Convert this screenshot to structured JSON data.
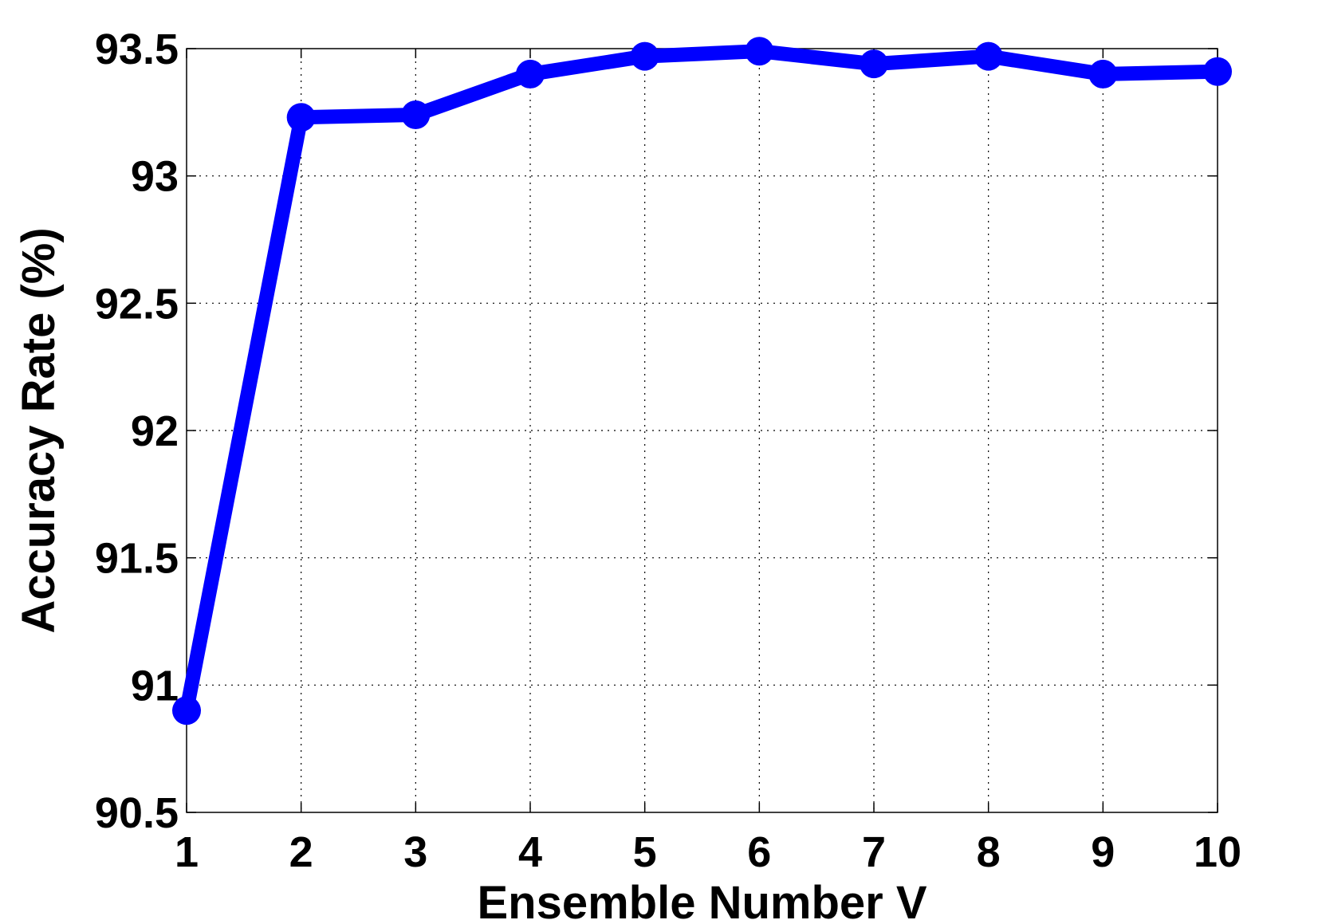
{
  "chart_data": {
    "type": "line",
    "title": "",
    "xlabel": "Ensemble Number V",
    "ylabel": "Accuracy Rate (%)",
    "xlim": [
      1,
      10
    ],
    "ylim": [
      90.5,
      93.5
    ],
    "xticks": [
      1,
      2,
      3,
      4,
      5,
      6,
      7,
      8,
      9,
      10
    ],
    "yticks": [
      90.5,
      91,
      91.5,
      92,
      92.5,
      93,
      93.5
    ],
    "xtick_labels": [
      "1",
      "2",
      "3",
      "4",
      "5",
      "6",
      "7",
      "8",
      "9",
      "10"
    ],
    "ytick_labels": [
      "90.5",
      "91",
      "91.5",
      "92",
      "92.5",
      "93",
      "93.5"
    ],
    "grid": true,
    "legend": false,
    "x": [
      1,
      2,
      3,
      4,
      5,
      6,
      7,
      8,
      9,
      10
    ],
    "series": [
      {
        "values": [
          90.9,
          93.23,
          93.24,
          93.4,
          93.47,
          93.49,
          93.44,
          93.47,
          93.4,
          93.41
        ],
        "color": "#0000ff",
        "marker": "circle"
      }
    ]
  }
}
